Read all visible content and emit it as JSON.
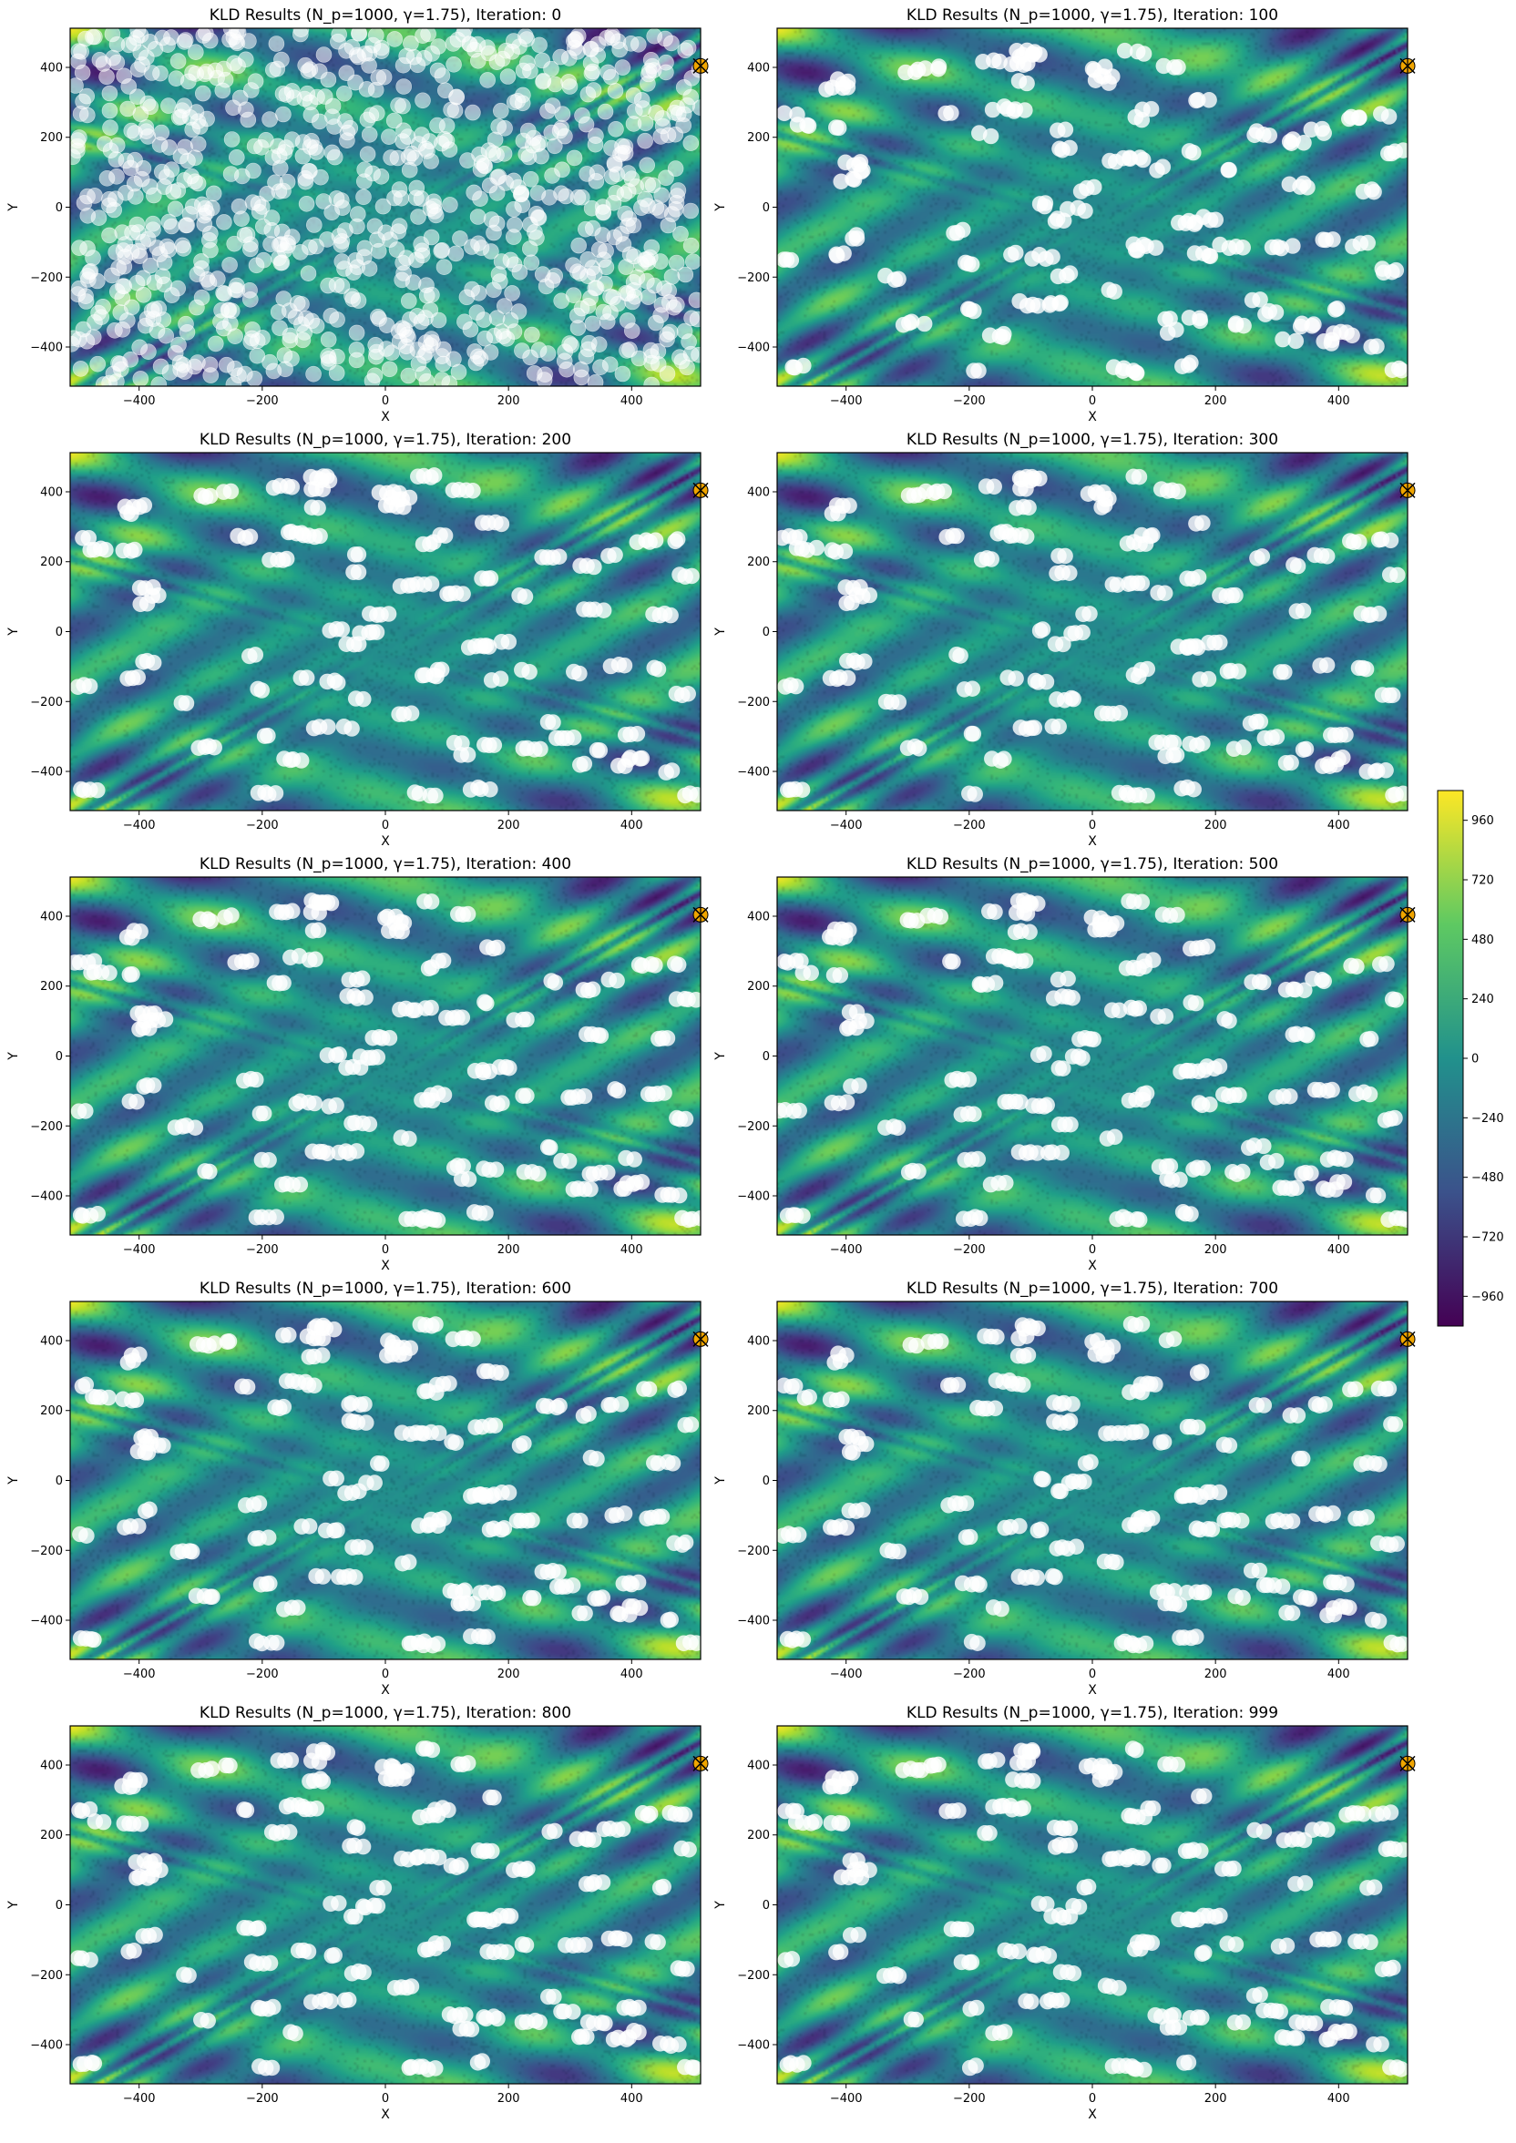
{
  "chart_data": [
    {
      "type": "scatter",
      "title": "KLD Results (N_p=1000, γ=1.75), Iteration: 0",
      "xlabel": "X",
      "ylabel": "Y",
      "xlim": [
        -512,
        512
      ],
      "ylim": [
        -512,
        512
      ]
    },
    {
      "type": "scatter",
      "title": "KLD Results (N_p=1000, γ=1.75), Iteration: 100",
      "xlabel": "X",
      "ylabel": "Y",
      "xlim": [
        -512,
        512
      ],
      "ylim": [
        -512,
        512
      ]
    },
    {
      "type": "scatter",
      "title": "KLD Results (N_p=1000, γ=1.75), Iteration: 200",
      "xlabel": "X",
      "ylabel": "Y",
      "xlim": [
        -512,
        512
      ],
      "ylim": [
        -512,
        512
      ]
    },
    {
      "type": "scatter",
      "title": "KLD Results (N_p=1000, γ=1.75), Iteration: 300",
      "xlabel": "X",
      "ylabel": "Y",
      "xlim": [
        -512,
        512
      ],
      "ylim": [
        -512,
        512
      ]
    },
    {
      "type": "scatter",
      "title": "KLD Results (N_p=1000, γ=1.75), Iteration: 400",
      "xlabel": "X",
      "ylabel": "Y",
      "xlim": [
        -512,
        512
      ],
      "ylim": [
        -512,
        512
      ]
    },
    {
      "type": "scatter",
      "title": "KLD Results (N_p=1000, γ=1.75), Iteration: 500",
      "xlabel": "X",
      "ylabel": "Y",
      "xlim": [
        -512,
        512
      ],
      "ylim": [
        -512,
        512
      ]
    },
    {
      "type": "scatter",
      "title": "KLD Results (N_p=1000, γ=1.75), Iteration: 600",
      "xlabel": "X",
      "ylabel": "Y",
      "xlim": [
        -512,
        512
      ],
      "ylim": [
        -512,
        512
      ]
    },
    {
      "type": "scatter",
      "title": "KLD Results (N_p=1000, γ=1.75), Iteration: 700",
      "xlabel": "X",
      "ylabel": "Y",
      "xlim": [
        -512,
        512
      ],
      "ylim": [
        -512,
        512
      ]
    },
    {
      "type": "scatter",
      "title": "KLD Results (N_p=1000, γ=1.75), Iteration: 800",
      "xlabel": "X",
      "ylabel": "Y",
      "xlim": [
        -512,
        512
      ],
      "ylim": [
        -512,
        512
      ]
    },
    {
      "type": "scatter",
      "title": "KLD Results (N_p=1000, γ=1.75), Iteration: 999",
      "xlabel": "X",
      "ylabel": "Y",
      "xlim": [
        -512,
        512
      ],
      "ylim": [
        -512,
        512
      ]
    }
  ],
  "axes": {
    "xticks": [
      -400,
      -200,
      0,
      200,
      400
    ],
    "yticks": [
      -400,
      -200,
      0,
      200,
      400
    ],
    "tick_labels": [
      "−400",
      "−200",
      "0",
      "200",
      "400"
    ]
  },
  "colorbar": {
    "range": [
      -1080,
      1080
    ],
    "ticks": [
      960,
      720,
      480,
      240,
      0,
      -240,
      -480,
      -720,
      -960
    ],
    "tick_labels": [
      "960",
      "720",
      "480",
      "240",
      "0",
      "−240",
      "−480",
      "−720",
      "−960"
    ],
    "colormap": [
      "#440154",
      "#3b528b",
      "#21918c",
      "#5ec962",
      "#fde725"
    ]
  },
  "markers": {
    "particle_color": "#ffffff",
    "optimum": {
      "x": 512,
      "y": 404.2
    }
  }
}
